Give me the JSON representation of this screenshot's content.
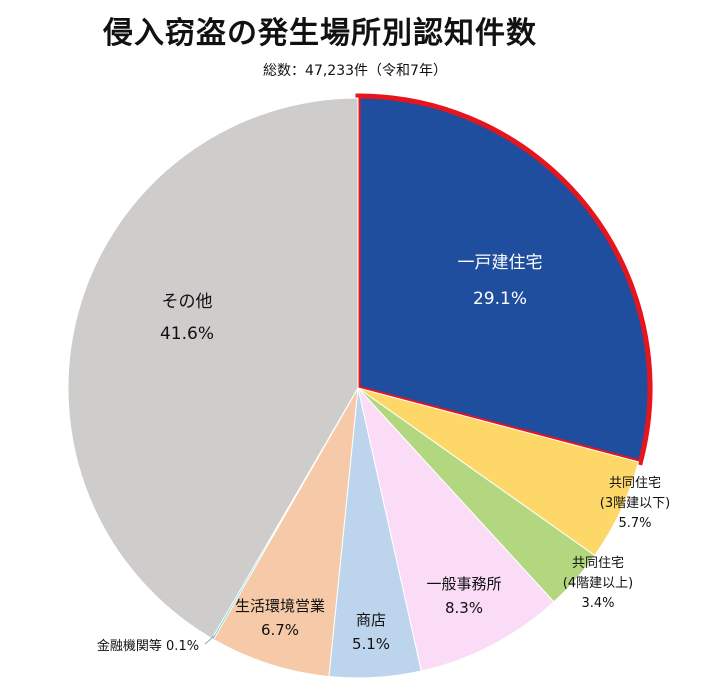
{
  "title": "侵入窃盗の発生場所別認知件数",
  "subtitle": "総数：47,233件（令和7年）",
  "chart_data": {
    "type": "pie",
    "title": "侵入窃盗の発生場所別認知件数",
    "total_note": "総数：47,233件（令和7年）",
    "unit": "%",
    "start": "12 o'clock, clockwise",
    "slices": [
      {
        "label": "一戸建住宅",
        "value": 29.1,
        "value_label": "29.1%",
        "color": "#1f4e9e",
        "highlight": true
      },
      {
        "label": "共同住宅\n(3階建以下)",
        "value": 5.7,
        "value_label": "5.7%",
        "color": "#fdd868"
      },
      {
        "label": "共同住宅\n(4階建以上)",
        "value": 3.4,
        "value_label": "3.4%",
        "color": "#b2d77f"
      },
      {
        "label": "一般事務所",
        "value": 8.3,
        "value_label": "8.3%",
        "color": "#fbdcf7"
      },
      {
        "label": "商店",
        "value": 5.1,
        "value_label": "5.1%",
        "color": "#bdd5ec"
      },
      {
        "label": "生活環境営業",
        "value": 6.7,
        "value_label": "6.7%",
        "color": "#f6caa8"
      },
      {
        "label": "金融機関等",
        "value": 0.1,
        "value_label": "0.1%",
        "color": "#2cc6c9"
      },
      {
        "label": "その他",
        "value": 41.6,
        "value_label": "41.6%",
        "color": "#cfcccc"
      }
    ]
  }
}
